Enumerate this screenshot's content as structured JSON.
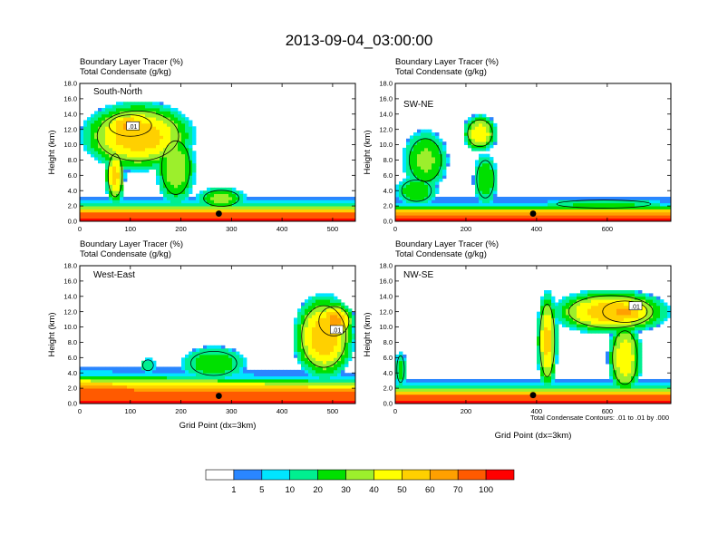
{
  "figure": {
    "title": "2013-09-04_03:00:00",
    "x_axis_label": "Grid Point (dx=3km)",
    "contour_note": "Total Condensate Contours: .01 to .01 by .000",
    "contour_label": ".01"
  },
  "colors": {
    "levels": [
      "#ffffff",
      "#2a86ff",
      "#00e5ff",
      "#00ef90",
      "#00e000",
      "#9cef2c",
      "#ffff00",
      "#ffd000",
      "#ffa000",
      "#ff5a00",
      "#ff0000"
    ],
    "contour": "#000000"
  },
  "chart_data": [
    {
      "type": "heatmap",
      "name": "South-North",
      "subtitle_1": "Boundary Layer Tracer   (%)",
      "subtitle_2": "Total Condensate   (g/kg)",
      "ylabel": "Height (km)",
      "xlabel": "",
      "xlim": [
        0,
        545
      ],
      "ylim": [
        0,
        18
      ],
      "xticks": [
        "0",
        "100",
        "200",
        "300",
        "400",
        "500"
      ],
      "xtick_values": [
        0,
        100,
        200,
        300,
        400,
        500
      ],
      "yticks": [
        "0.0",
        "2.0",
        "4.0",
        "6.0",
        "8.0",
        "10.0",
        "12.0",
        "14.0",
        "16.0",
        "18.0"
      ],
      "marker": {
        "x": 275,
        "y": 1.0
      },
      "contour_label_pos": {
        "x": 105,
        "y": 12.4
      },
      "field": {
        "bl_top": [
          [
            0,
            2.2
          ],
          [
            545,
            2.2
          ]
        ],
        "features": [
          {
            "x0": 0,
            "x1": 230,
            "y0": 6.5,
            "y1": 15.8,
            "peak": 55
          },
          {
            "x0": 40,
            "x1": 160,
            "y0": 10.5,
            "y1": 14.5,
            "peak": 60
          },
          {
            "x0": 50,
            "x1": 90,
            "y0": 2,
            "y1": 10,
            "peak": 50
          },
          {
            "x0": 150,
            "x1": 230,
            "y0": 2,
            "y1": 12,
            "peak": 35
          },
          {
            "x0": 230,
            "x1": 330,
            "y0": 1.5,
            "y1": 4.5,
            "peak": 30
          }
        ]
      }
    },
    {
      "type": "heatmap",
      "name": "SW-NE",
      "subtitle_1": "Boundary Layer Tracer   (%)",
      "subtitle_2": "Total Condensate   (g/kg)",
      "ylabel": "Height (km)",
      "xlabel": "",
      "xlim": [
        0,
        780
      ],
      "ylim": [
        0,
        18
      ],
      "xticks": [
        "0",
        "200",
        "400",
        "600"
      ],
      "xtick_values": [
        0,
        200,
        400,
        600
      ],
      "yticks": [
        "0.0",
        "2.0",
        "4.0",
        "6.0",
        "8.0",
        "10.0",
        "12.0",
        "14.0",
        "16.0",
        "18.0"
      ],
      "marker": {
        "x": 390,
        "y": 1.0
      },
      "contour_label_pos": null,
      "field": {
        "bl_top": [
          [
            0,
            2.0
          ],
          [
            780,
            2.0
          ]
        ],
        "features": [
          {
            "x0": 20,
            "x1": 150,
            "y0": 4,
            "y1": 12,
            "peak": 30
          },
          {
            "x0": 190,
            "x1": 290,
            "y0": 9,
            "y1": 14,
            "peak": 45
          },
          {
            "x0": 220,
            "x1": 290,
            "y0": 2,
            "y1": 9,
            "peak": 25
          },
          {
            "x0": 0,
            "x1": 120,
            "y0": 2,
            "y1": 6,
            "peak": 25
          },
          {
            "x0": 400,
            "x1": 780,
            "y0": 1.5,
            "y1": 3,
            "peak": 20
          }
        ]
      }
    },
    {
      "type": "heatmap",
      "name": "West-East",
      "subtitle_1": "Boundary Layer Tracer   (%)",
      "subtitle_2": "Total Condensate   (g/kg)",
      "ylabel": "Height (km)",
      "xlabel": "Grid Point (dx=3km)",
      "xlim": [
        0,
        545
      ],
      "ylim": [
        0,
        18
      ],
      "xticks": [
        "0",
        "100",
        "200",
        "300",
        "400",
        "500"
      ],
      "xtick_values": [
        0,
        100,
        200,
        300,
        400,
        500
      ],
      "yticks": [
        "0.0",
        "2.0",
        "4.0",
        "6.0",
        "8.0",
        "10.0",
        "12.0",
        "14.0",
        "16.0",
        "18.0"
      ],
      "marker": {
        "x": 275,
        "y": 1.0
      },
      "contour_label_pos": {
        "x": 508,
        "y": 9.6
      },
      "field": {
        "bl_top": [
          [
            0,
            3.8
          ],
          [
            545,
            3.0
          ]
        ],
        "features": [
          {
            "x0": 420,
            "x1": 545,
            "y0": 3,
            "y1": 14.5,
            "peak": 55
          },
          {
            "x0": 460,
            "x1": 545,
            "y0": 8,
            "y1": 13.5,
            "peak": 60
          },
          {
            "x0": 200,
            "x1": 330,
            "y0": 3,
            "y1": 7.5,
            "peak": 25
          },
          {
            "x0": 120,
            "x1": 150,
            "y0": 4,
            "y1": 6,
            "peak": 15
          }
        ]
      }
    },
    {
      "type": "heatmap",
      "name": "NW-SE",
      "subtitle_1": "Boundary Layer Tracer   (%)",
      "subtitle_2": "Total Condensate   (g/kg)",
      "ylabel": "Height (km)",
      "xlabel": "Grid Point (dx=3km)",
      "xlim": [
        0,
        780
      ],
      "ylim": [
        0,
        18
      ],
      "xticks": [
        "0",
        "200",
        "400",
        "600"
      ],
      "xtick_values": [
        0,
        200,
        400,
        600
      ],
      "yticks": [
        "0.0",
        "2.0",
        "4.0",
        "6.0",
        "8.0",
        "10.0",
        "12.0",
        "14.0",
        "16.0",
        "18.0"
      ],
      "marker": {
        "x": 390,
        "y": 1.1
      },
      "contour_label_pos": {
        "x": 680,
        "y": 12.7
      },
      "field": {
        "bl_top": [
          [
            0,
            2.2
          ],
          [
            780,
            2.2
          ]
        ],
        "features": [
          {
            "x0": 440,
            "x1": 780,
            "y0": 9,
            "y1": 15,
            "peak": 55
          },
          {
            "x0": 560,
            "x1": 740,
            "y0": 10,
            "y1": 14,
            "peak": 60
          },
          {
            "x0": 400,
            "x1": 460,
            "y0": 1.5,
            "y1": 15,
            "peak": 50
          },
          {
            "x0": 600,
            "x1": 700,
            "y0": 1,
            "y1": 11,
            "peak": 45
          },
          {
            "x0": 0,
            "x1": 30,
            "y0": 2,
            "y1": 7,
            "peak": 20
          }
        ]
      }
    }
  ],
  "colorbar": {
    "labels": [
      "1",
      "5",
      "10",
      "20",
      "30",
      "40",
      "50",
      "60",
      "70",
      "100"
    ]
  }
}
